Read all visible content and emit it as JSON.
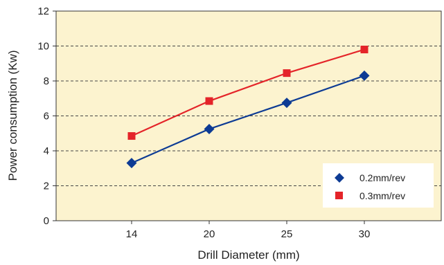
{
  "chart_data": {
    "type": "line",
    "title": "",
    "xlabel": "Drill Diameter (mm)",
    "ylabel": "Power consumption (Kw)",
    "categories": [
      "14",
      "20",
      "25",
      "30"
    ],
    "ylim": [
      0,
      12
    ],
    "yticks": [
      "0",
      "2",
      "4",
      "6",
      "8",
      "10",
      "12"
    ],
    "grid": "horizontal dashed",
    "legend_position": "bottom-right",
    "background_color": "#fcf3cf",
    "series": [
      {
        "name": "0.2mm/rev",
        "marker": "diamond",
        "color": "#0d3b94",
        "values": [
          3.3,
          5.25,
          6.75,
          8.3
        ]
      },
      {
        "name": "0.3mm/rev",
        "marker": "square",
        "color": "#e42429",
        "values": [
          4.85,
          6.85,
          8.45,
          9.8
        ]
      }
    ]
  }
}
